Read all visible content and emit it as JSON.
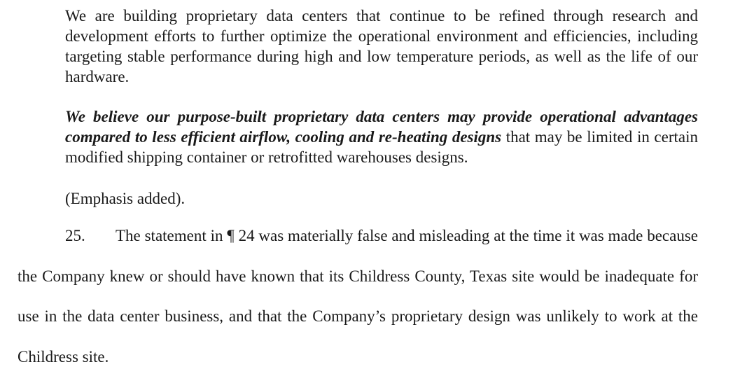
{
  "document": {
    "quote": {
      "para1": "We are building proprietary data centers that continue to be refined through research and development efforts to further optimize the operational environment and efficiencies, including targeting stable performance during high and low temperature periods, as well as the life of our hardware.",
      "para2_emphasis": "We believe our purpose-built proprietary data centers may provide operational advantages compared to less efficient airflow, cooling and re-heating designs",
      "para2_rest": " that may be limited in certain modified shipping container or retrofitted warehouses designs.",
      "emphasis_note": "(Emphasis added)."
    },
    "paragraph_25": {
      "number": "25.",
      "text": "The statement in ¶ 24 was materially false and misleading at the time it was made because the Company knew or should have known that its Childress County, Texas site would be inadequate for use in the data center business, and that the Company’s proprietary design was unlikely to work at the Childress site."
    },
    "colors": {
      "text": "#1a1a1a",
      "background": "#ffffff"
    }
  }
}
